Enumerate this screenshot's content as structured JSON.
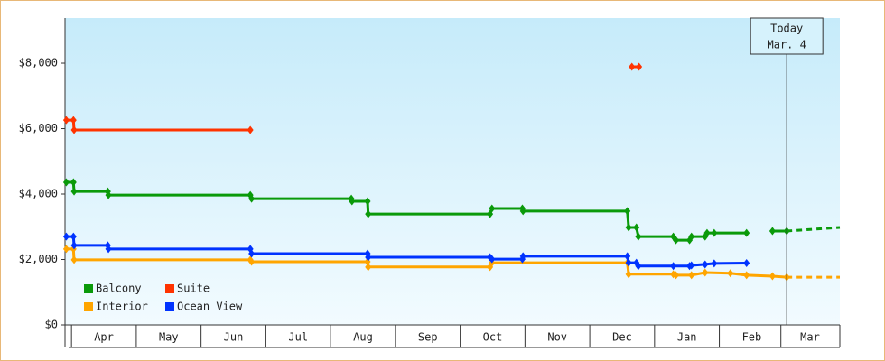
{
  "chart_data": {
    "type": "line",
    "step": true,
    "xlim": [
      -0.1,
      11.86
    ],
    "xticks": [
      {
        "value": 0.5,
        "label": "Apr"
      },
      {
        "value": 1.5,
        "label": "May"
      },
      {
        "value": 2.5,
        "label": "Jun"
      },
      {
        "value": 3.5,
        "label": "Jul"
      },
      {
        "value": 4.5,
        "label": "Aug"
      },
      {
        "value": 5.5,
        "label": "Sep"
      },
      {
        "value": 6.5,
        "label": "Oct"
      },
      {
        "value": 7.5,
        "label": "Nov"
      },
      {
        "value": 8.5,
        "label": "Dec"
      },
      {
        "value": 9.5,
        "label": "Jan"
      },
      {
        "value": 10.5,
        "label": "Feb"
      },
      {
        "value": 11.4,
        "label": "Mar"
      }
    ],
    "ylim": [
      0,
      9380
    ],
    "yticks": [
      {
        "value": 0,
        "label": "$0"
      },
      {
        "value": 2000,
        "label": "$2,000"
      },
      {
        "value": 4000,
        "label": "$4,000"
      },
      {
        "value": 6000,
        "label": "$6,000"
      },
      {
        "value": 8000,
        "label": "$8,000"
      }
    ],
    "annotation": {
      "x": 11.04,
      "lines": [
        "Today",
        "Mar. 4"
      ]
    },
    "legend": "lower left",
    "series": [
      {
        "name": "Balcony",
        "color": "#0a9a0a",
        "x": [
          -0.08,
          0.03,
          0.04,
          0.56,
          0.57,
          2.76,
          2.78,
          4.32,
          4.33,
          4.57,
          4.58,
          6.46,
          6.49,
          6.96,
          6.97,
          8.58,
          8.6,
          8.72,
          8.75,
          9.29,
          9.33,
          9.54,
          9.57,
          9.78,
          9.81,
          9.92,
          10.42,
          null,
          10.82,
          11.04
        ],
        "values": [
          4360,
          4360,
          4080,
          4080,
          3970,
          3970,
          3860,
          3860,
          3780,
          3780,
          3390,
          3390,
          3560,
          3560,
          3480,
          3480,
          2980,
          2980,
          2700,
          2700,
          2590,
          2590,
          2700,
          2700,
          2810,
          2810,
          2810,
          null,
          2870,
          2870
        ],
        "projection": {
          "x": [
            11.04,
            11.86
          ],
          "values": [
            2870,
            2980
          ]
        }
      },
      {
        "name": "Suite",
        "color": "#ff3300",
        "x": [
          -0.08,
          0.03,
          0.04,
          2.76,
          null,
          8.65,
          8.76
        ],
        "values": [
          6260,
          6260,
          5960,
          5960,
          null,
          7890,
          7890
        ]
      },
      {
        "name": "Interior",
        "color": "#ffa500",
        "x": [
          -0.08,
          0.03,
          0.04,
          2.76,
          2.78,
          4.57,
          4.58,
          6.46,
          6.49,
          8.58,
          8.6,
          9.29,
          9.33,
          9.57,
          9.78,
          10.17,
          10.42,
          10.82,
          11.04
        ],
        "values": [
          2320,
          2320,
          1990,
          1990,
          1930,
          1930,
          1770,
          1770,
          1900,
          1900,
          1550,
          1550,
          1520,
          1520,
          1600,
          1580,
          1520,
          1490,
          1460
        ],
        "projection": {
          "x": [
            11.04,
            11.86
          ],
          "values": [
            1460,
            1460
          ]
        }
      },
      {
        "name": "Ocean View",
        "color": "#0033ff",
        "x": [
          -0.08,
          0.03,
          0.04,
          0.56,
          0.57,
          2.76,
          2.78,
          4.57,
          4.58,
          6.46,
          6.49,
          6.96,
          6.97,
          8.58,
          8.6,
          8.72,
          8.75,
          9.29,
          9.54,
          9.57,
          9.78,
          9.92,
          10.42
        ],
        "values": [
          2700,
          2700,
          2430,
          2430,
          2320,
          2320,
          2180,
          2180,
          2070,
          2070,
          2010,
          2010,
          2100,
          2100,
          1900,
          1900,
          1800,
          1800,
          1800,
          1820,
          1850,
          1880,
          1890
        ]
      }
    ]
  }
}
